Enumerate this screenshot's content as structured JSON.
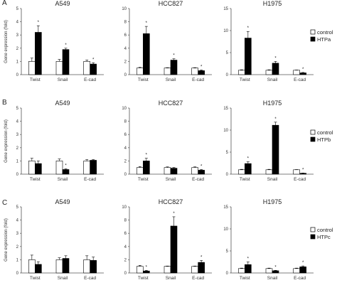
{
  "panel_letters": [
    "A",
    "B",
    "C"
  ],
  "colors": {
    "control": "#ffffff",
    "treatment": "#000000",
    "axis": "#555555"
  },
  "chart_data": [
    {
      "type": "bar",
      "row": 0,
      "col": 0,
      "title": "A549",
      "ylabel": "Gene expression (fold)",
      "ylim": [
        0,
        5
      ],
      "yticks": [
        "0",
        "1",
        "2",
        "3",
        "4",
        "5"
      ],
      "categories": [
        "Twist",
        "Snail",
        "E-cad"
      ],
      "series": [
        {
          "name": "control",
          "values": [
            1.0,
            1.0,
            1.0
          ],
          "errors": [
            0.25,
            0.15,
            0.1
          ]
        },
        {
          "name": "HTPa",
          "values": [
            3.2,
            1.9,
            0.8
          ],
          "errors": [
            0.5,
            0.1,
            0.1
          ]
        }
      ],
      "significance": [
        [
          false,
          true
        ],
        [
          false,
          true
        ],
        [
          false,
          true
        ]
      ]
    },
    {
      "type": "bar",
      "row": 0,
      "col": 1,
      "title": "HCC827",
      "ylabel": "",
      "ylim": [
        0,
        10
      ],
      "yticks": [
        "0",
        "2",
        "4",
        "6",
        "8",
        "10"
      ],
      "categories": [
        "Twist",
        "Snail",
        "E-cad"
      ],
      "series": [
        {
          "name": "control",
          "values": [
            1.0,
            1.0,
            1.0
          ],
          "errors": [
            0.1,
            0.05,
            0.05
          ]
        },
        {
          "name": "HTPa",
          "values": [
            6.2,
            2.2,
            0.6
          ],
          "errors": [
            1.1,
            0.2,
            0.1
          ]
        }
      ],
      "significance": [
        [
          false,
          true
        ],
        [
          false,
          true
        ],
        [
          false,
          true
        ]
      ]
    },
    {
      "type": "bar",
      "row": 0,
      "col": 2,
      "title": "H1975",
      "ylabel": "",
      "ylim": [
        0,
        15
      ],
      "yticks": [
        "0",
        "5",
        "10",
        "15"
      ],
      "categories": [
        "Twist",
        "Snail",
        "E-cad"
      ],
      "series": [
        {
          "name": "control",
          "values": [
            1.0,
            1.0,
            1.0
          ],
          "errors": [
            0.1,
            0.1,
            0.05
          ]
        },
        {
          "name": "HTPa",
          "values": [
            8.3,
            2.6,
            0.4
          ],
          "errors": [
            1.5,
            0.4,
            0.1
          ]
        }
      ],
      "significance": [
        [
          false,
          true
        ],
        [
          false,
          true
        ],
        [
          false,
          true
        ]
      ]
    },
    {
      "type": "bar",
      "row": 1,
      "col": 0,
      "title": "A549",
      "ylabel": "Gene expression (fold)",
      "ylim": [
        0,
        5
      ],
      "yticks": [
        "0",
        "1",
        "2",
        "3",
        "4",
        "5"
      ],
      "categories": [
        "Twist",
        "Snail",
        "E-cad"
      ],
      "series": [
        {
          "name": "control",
          "values": [
            1.0,
            1.0,
            1.0
          ],
          "errors": [
            0.2,
            0.15,
            0.1
          ]
        },
        {
          "name": "HTPb",
          "values": [
            0.8,
            0.35,
            1.05
          ],
          "errors": [
            0.2,
            0.05,
            0.05
          ]
        }
      ],
      "significance": [
        [
          false,
          false
        ],
        [
          false,
          true
        ],
        [
          false,
          false
        ]
      ]
    },
    {
      "type": "bar",
      "row": 1,
      "col": 1,
      "title": "HCC827",
      "ylabel": "",
      "ylim": [
        0,
        10
      ],
      "yticks": [
        "0",
        "2",
        "4",
        "6",
        "8",
        "10"
      ],
      "categories": [
        "Twist",
        "Snail",
        "E-cad"
      ],
      "series": [
        {
          "name": "control",
          "values": [
            1.0,
            1.0,
            1.0
          ],
          "errors": [
            0.15,
            0.1,
            0.1
          ]
        },
        {
          "name": "HTPb",
          "values": [
            2.0,
            0.9,
            0.6
          ],
          "errors": [
            0.4,
            0.1,
            0.1
          ]
        }
      ],
      "significance": [
        [
          false,
          true
        ],
        [
          false,
          false
        ],
        [
          false,
          true
        ]
      ]
    },
    {
      "type": "bar",
      "row": 1,
      "col": 2,
      "title": "H1975",
      "ylabel": "",
      "ylim": [
        0,
        15
      ],
      "yticks": [
        "0",
        "5",
        "10",
        "15"
      ],
      "categories": [
        "Twist",
        "Snail",
        "E-cad"
      ],
      "series": [
        {
          "name": "control",
          "values": [
            1.0,
            1.0,
            1.0
          ],
          "errors": [
            0.1,
            0.1,
            0.05
          ]
        },
        {
          "name": "HTPb",
          "values": [
            2.4,
            11.1,
            0.2
          ],
          "errors": [
            0.4,
            0.7,
            0.05
          ]
        }
      ],
      "significance": [
        [
          false,
          true
        ],
        [
          false,
          true
        ],
        [
          false,
          true
        ]
      ]
    },
    {
      "type": "bar",
      "row": 2,
      "col": 0,
      "title": "A549",
      "ylabel": "Gene expression (fold)",
      "ylim": [
        0,
        5
      ],
      "yticks": [
        "0",
        "1",
        "2",
        "3",
        "4",
        "5"
      ],
      "categories": [
        "Twist",
        "Snail",
        "E-cad"
      ],
      "series": [
        {
          "name": "control",
          "values": [
            1.0,
            1.0,
            1.0
          ],
          "errors": [
            0.35,
            0.15,
            0.3
          ]
        },
        {
          "name": "HTPc",
          "values": [
            0.65,
            1.1,
            0.95
          ],
          "errors": [
            0.2,
            0.2,
            0.25
          ]
        }
      ],
      "significance": [
        [
          false,
          false
        ],
        [
          false,
          false
        ],
        [
          false,
          false
        ]
      ]
    },
    {
      "type": "bar",
      "row": 2,
      "col": 1,
      "title": "HCC827",
      "ylabel": "",
      "ylim": [
        0,
        10
      ],
      "yticks": [
        "0",
        "2",
        "4",
        "6",
        "8",
        "10"
      ],
      "categories": [
        "Twist",
        "Snail",
        "E-cad"
      ],
      "series": [
        {
          "name": "control",
          "values": [
            1.0,
            1.0,
            1.0
          ],
          "errors": [
            0.15,
            0.05,
            0.05
          ]
        },
        {
          "name": "HTPc",
          "values": [
            0.3,
            7.1,
            1.6
          ],
          "errors": [
            0.1,
            1.4,
            0.3
          ]
        }
      ],
      "significance": [
        [
          false,
          true
        ],
        [
          false,
          true
        ],
        [
          false,
          true
        ]
      ]
    },
    {
      "type": "bar",
      "row": 2,
      "col": 2,
      "title": "H1975",
      "ylabel": "",
      "ylim": [
        0,
        15
      ],
      "yticks": [
        "0",
        "5",
        "10",
        "15"
      ],
      "categories": [
        "Twist",
        "Snail",
        "E-cad"
      ],
      "series": [
        {
          "name": "control",
          "values": [
            1.0,
            1.0,
            1.0
          ],
          "errors": [
            0.1,
            0.1,
            0.1
          ]
        },
        {
          "name": "HTPc",
          "values": [
            1.9,
            0.5,
            1.4
          ],
          "errors": [
            0.6,
            0.1,
            0.2
          ]
        }
      ],
      "significance": [
        [
          false,
          true
        ],
        [
          false,
          true
        ],
        [
          false,
          true
        ]
      ]
    }
  ],
  "legends": [
    {
      "row": 0,
      "items": [
        {
          "label": "control",
          "color": "#ffffff"
        },
        {
          "label": "HTPa",
          "color": "#000000"
        }
      ]
    },
    {
      "row": 1,
      "items": [
        {
          "label": "control",
          "color": "#ffffff"
        },
        {
          "label": "HTPb",
          "color": "#000000"
        }
      ]
    },
    {
      "row": 2,
      "items": [
        {
          "label": "control",
          "color": "#ffffff"
        },
        {
          "label": "HTPc",
          "color": "#000000"
        }
      ]
    }
  ],
  "significance_symbol": "*"
}
